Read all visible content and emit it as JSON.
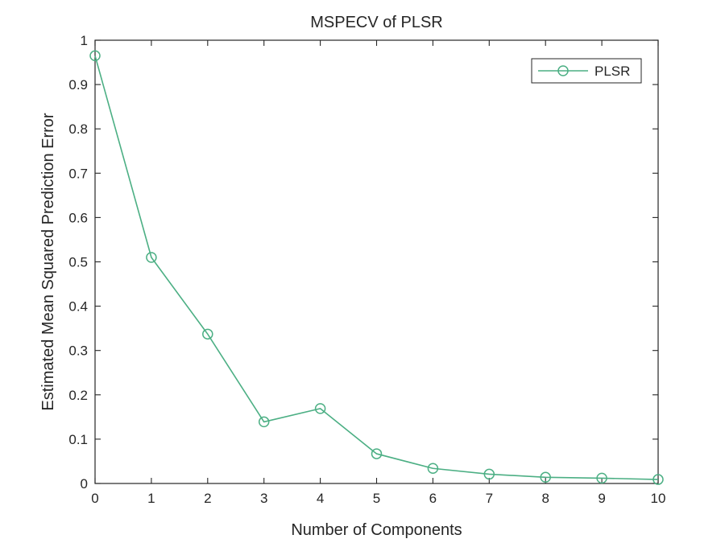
{
  "chart_data": {
    "type": "line",
    "title": "MSPECV of PLSR",
    "xlabel": "Number of Components",
    "ylabel": "Estimated Mean Squared Prediction Error",
    "xlim": [
      0,
      10
    ],
    "ylim": [
      0,
      1
    ],
    "xticks": [
      0,
      1,
      2,
      3,
      4,
      5,
      6,
      7,
      8,
      9,
      10
    ],
    "yticks": [
      0,
      0.1,
      0.2,
      0.3,
      0.4,
      0.5,
      0.6,
      0.7,
      0.8,
      0.9,
      1
    ],
    "xtick_labels": [
      "0",
      "1",
      "2",
      "3",
      "4",
      "5",
      "6",
      "7",
      "8",
      "9",
      "10"
    ],
    "ytick_labels": [
      "0",
      "0.1",
      "0.2",
      "0.3",
      "0.4",
      "0.5",
      "0.6",
      "0.7",
      "0.8",
      "0.9",
      "1"
    ],
    "grid": false,
    "legend": {
      "placement": "top-right",
      "entries": [
        "PLSR"
      ]
    },
    "series": [
      {
        "name": "PLSR",
        "color": "#4caf84",
        "marker": "circle",
        "x": [
          0,
          1,
          2,
          3,
          4,
          5,
          6,
          7,
          8,
          9,
          10
        ],
        "y": [
          0.965,
          0.51,
          0.337,
          0.139,
          0.169,
          0.067,
          0.034,
          0.021,
          0.014,
          0.012,
          0.009
        ]
      }
    ]
  }
}
